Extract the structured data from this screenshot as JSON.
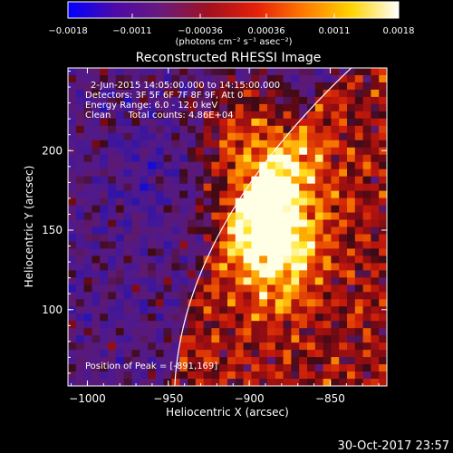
{
  "chart_data": {
    "type": "heatmap",
    "title": "Reconstructed RHESSI Image",
    "xlabel": "Heliocentric X (arcsec)",
    "ylabel": "Heliocentric Y (arcsec)",
    "xlim": [
      -1012,
      -815
    ],
    "ylim": [
      52,
      252
    ],
    "x_ticks": [
      -1000,
      -950,
      -900,
      -850
    ],
    "x_tick_labels": [
      "−1000",
      "−950",
      "−900",
      "−850"
    ],
    "y_ticks": [
      100,
      150,
      200
    ],
    "y_tick_labels": [
      "100",
      "150",
      "200"
    ],
    "colorbar": {
      "range": [
        -0.0018,
        0.0018
      ],
      "ticks": [
        -0.0018,
        -0.0011,
        -0.00036,
        0.00036,
        0.0011,
        0.0018
      ],
      "tick_labels": [
        "−0.0018",
        "−0.0011",
        "−0.00036",
        "0.00036",
        "0.0011",
        "0.0018"
      ],
      "units": "(photons cm⁻² s⁻¹ asec⁻²)",
      "colors": [
        "#0000ff",
        "#4d0aa8",
        "#6a1a7a",
        "#a3101f",
        "#e5200a",
        "#ff7a00",
        "#ffd400",
        "#ffffff"
      ]
    },
    "peak": {
      "x": -891,
      "y": 169
    },
    "image_grid": {
      "cols": 40,
      "rows": 44
    },
    "annotations": {
      "time_range": "2-Jun-2015 14:05:00.000 to 14:15:00.000",
      "detectors": "Detectors: 3F 5F 6F 7F 8F 9F, Att 0",
      "energy": "Energy Range: 6.0 - 12.0 keV",
      "clean": "Clean      Total counts: 4.86E+04",
      "peak_label": "Position of Peak = [-891,169]"
    },
    "limb": {
      "shown": true,
      "color": "#ffffff"
    },
    "grid": false
  },
  "footer": {
    "timestamp": "30-Oct-2017 23:57"
  }
}
